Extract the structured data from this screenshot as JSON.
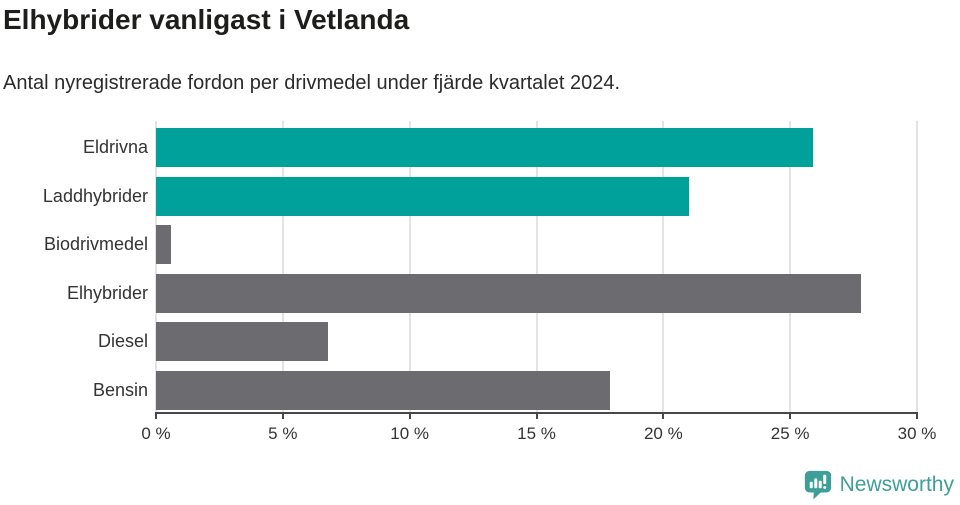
{
  "header": {
    "title": "Elhybrider vanligast i Vetlanda",
    "subtitle": "Antal nyregistrerade fordon per drivmedel under fjärde kvartalet 2024."
  },
  "chart_data": {
    "type": "bar",
    "orientation": "horizontal",
    "title": "Elhybrider vanligast i Vetlanda",
    "subtitle": "Antal nyregistrerade fordon per drivmedel under fjärde kvartalet 2024.",
    "categories": [
      "Eldrivna",
      "Laddhybrider",
      "Biodrivmedel",
      "Elhybrider",
      "Diesel",
      "Bensin"
    ],
    "values": [
      25.9,
      21.0,
      0.6,
      27.8,
      6.8,
      17.9
    ],
    "unit": "%",
    "bar_colors": [
      "#00a19a",
      "#00a19a",
      "#6c6c70",
      "#6c6c70",
      "#6c6c70",
      "#6c6c70"
    ],
    "xlabel": "",
    "ylabel": "",
    "xlim": [
      0,
      30
    ],
    "x_tick_values": [
      0,
      5,
      10,
      15,
      20,
      25,
      30
    ],
    "x_tick_labels": [
      "0 %",
      "5 %",
      "10 %",
      "15 %",
      "20 %",
      "25 %",
      "30 %"
    ],
    "grid": "vertical-gridlines",
    "legend": "none"
  },
  "footer": {
    "brand": "Newsworthy",
    "logo_icon": "newsworthy-speech-bubble-bar-chart-icon",
    "brand_color": "#3e9e98"
  },
  "colors": {
    "teal_bar": "#00a19a",
    "gray_bar": "#6c6c70",
    "axis": "#47474a",
    "gridline": "#e3e3e3",
    "title_text": "#1d1d1b",
    "body_text": "#333333",
    "background": "#ffffff"
  }
}
